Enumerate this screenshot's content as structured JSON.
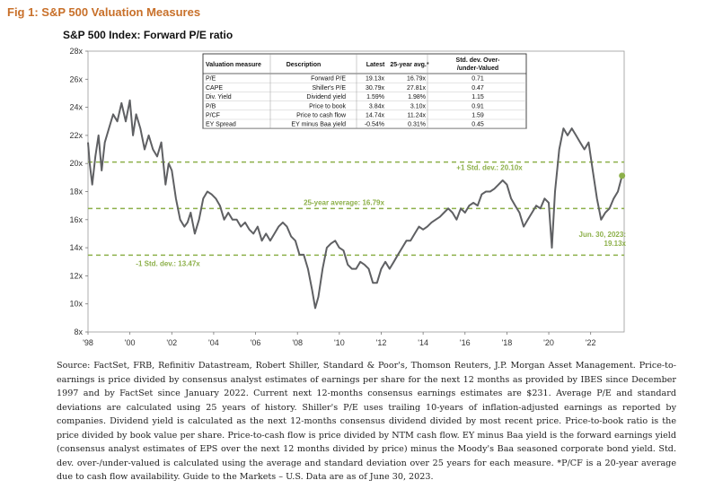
{
  "figure_title": "Fig 1: S&P 500 Valuation Measures",
  "colors": {
    "accent": "#c8702a",
    "line": "#5f6063",
    "band": "#8db04a",
    "endpoint": "#8db04a"
  },
  "source_text": "Source: FactSet, FRB, Refinitiv Datastream, Robert Shiller, Standard & Poor's, Thomson Reuters, J.P. Morgan Asset Management. Price-to-earnings is price divided by consensus analyst estimates of earnings per share for the next 12 months as provided by IBES since December 1997 and by FactSet since January 2022. Current next 12-months consensus earnings estimates are $231. Average P/E and standard deviations are calculated using 25 years of history. Shiller's P/E uses trailing 10-years of inflation-adjusted earnings as reported by companies. Dividend yield is calculated as the next 12-months consensus dividend divided by most recent price. Price-to-book ratio is the price divided by book value per share. Price-to-cash flow is price divided by NTM cash flow. EY minus Baa yield is the forward earnings yield (consensus analyst estimates of EPS over the next 12 months divided by price) minus the Moody's Baa seasoned corporate bond yield. Std. dev. over-/under-valued is calculated using the average and standard deviation over 25 years for each measure. *P/CF is a 20-year average due to cash flow availability. Guide to the Markets – U.S. Data are as of June 30, 2023.",
  "chart_data": {
    "type": "line",
    "title": "S&P 500 Index: Forward P/E ratio",
    "ylim": [
      8,
      28
    ],
    "y_ticks": [
      "8x",
      "10x",
      "12x",
      "14x",
      "16x",
      "18x",
      "20x",
      "22x",
      "24x",
      "26x",
      "28x"
    ],
    "x_ticks": [
      "'98",
      "'00",
      "'02",
      "'04",
      "'06",
      "'08",
      "'10",
      "'12",
      "'14",
      "'16",
      "'18",
      "'20",
      "'22"
    ],
    "reference_lines": [
      {
        "label": "+1 Std. dev.: 20.10x",
        "value": 20.1
      },
      {
        "label": "25-year average: 16.79x",
        "value": 16.79
      },
      {
        "label": "-1 Std. dev.: 13.47x",
        "value": 13.47
      }
    ],
    "endpoint_label": [
      "Jun. 30, 2023:",
      "19.13x"
    ],
    "series": [
      {
        "x": [
          1998.0,
          1998.08,
          1998.2,
          1998.35,
          1998.5,
          1998.65,
          1998.8,
          1999.0,
          1999.2,
          1999.4,
          1999.6,
          1999.8,
          2000.0,
          2000.15,
          2000.3,
          2000.5,
          2000.7,
          2000.9,
          2001.1,
          2001.3,
          2001.5,
          2001.7,
          2001.85,
          2002.0,
          2002.2,
          2002.4,
          2002.6,
          2002.75,
          2002.9,
          2003.1,
          2003.3,
          2003.5,
          2003.7,
          2003.9,
          2004.1,
          2004.3,
          2004.5,
          2004.7,
          2004.9,
          2005.1,
          2005.3,
          2005.5,
          2005.7,
          2005.9,
          2006.1,
          2006.3,
          2006.5,
          2006.7,
          2006.9,
          2007.1,
          2007.3,
          2007.5,
          2007.7,
          2007.9,
          2008.1,
          2008.3,
          2008.5,
          2008.7,
          2008.85,
          2009.0,
          2009.2,
          2009.4,
          2009.6,
          2009.8,
          2010.0,
          2010.2,
          2010.4,
          2010.6,
          2010.8,
          2011.0,
          2011.2,
          2011.4,
          2011.6,
          2011.8,
          2012.0,
          2012.2,
          2012.4,
          2012.6,
          2012.8,
          2013.0,
          2013.2,
          2013.4,
          2013.6,
          2013.8,
          2014.0,
          2014.2,
          2014.4,
          2014.6,
          2014.8,
          2015.0,
          2015.2,
          2015.4,
          2015.6,
          2015.8,
          2016.0,
          2016.2,
          2016.4,
          2016.6,
          2016.8,
          2017.0,
          2017.2,
          2017.4,
          2017.6,
          2017.8,
          2018.0,
          2018.2,
          2018.4,
          2018.6,
          2018.8,
          2019.0,
          2019.2,
          2019.4,
          2019.6,
          2019.8,
          2020.0,
          2020.15,
          2020.3,
          2020.5,
          2020.7,
          2020.9,
          2021.1,
          2021.3,
          2021.5,
          2021.7,
          2021.9,
          2022.1,
          2022.3,
          2022.5,
          2022.7,
          2022.9,
          2023.1,
          2023.3,
          2023.5
        ],
        "values": [
          21.5,
          20.0,
          18.5,
          20.5,
          22.0,
          19.5,
          21.5,
          22.5,
          23.5,
          23.0,
          24.3,
          23.0,
          24.5,
          22.0,
          23.5,
          22.5,
          21.0,
          22.0,
          21.0,
          20.5,
          21.5,
          18.5,
          20.0,
          19.5,
          17.5,
          16.0,
          15.5,
          15.8,
          16.5,
          15.0,
          16.0,
          17.5,
          18.0,
          17.8,
          17.5,
          17.0,
          16.0,
          16.5,
          16.0,
          16.0,
          15.5,
          15.8,
          15.3,
          15.0,
          15.5,
          14.5,
          15.0,
          14.5,
          15.0,
          15.5,
          15.8,
          15.5,
          14.8,
          14.5,
          13.5,
          13.5,
          12.5,
          11.0,
          9.7,
          10.5,
          12.5,
          14.0,
          14.3,
          14.5,
          14.0,
          13.8,
          12.8,
          12.5,
          12.5,
          13.0,
          12.8,
          12.5,
          11.5,
          11.5,
          12.5,
          13.0,
          12.5,
          13.0,
          13.5,
          14.0,
          14.5,
          14.5,
          15.0,
          15.5,
          15.3,
          15.5,
          15.8,
          16.0,
          16.2,
          16.5,
          16.8,
          16.5,
          16.0,
          16.8,
          16.5,
          17.0,
          17.2,
          17.0,
          17.8,
          18.0,
          18.0,
          18.2,
          18.5,
          18.8,
          18.5,
          17.5,
          17.0,
          16.5,
          15.5,
          16.0,
          16.5,
          17.0,
          16.8,
          17.5,
          17.2,
          14.0,
          18.0,
          21.0,
          22.5,
          22.0,
          22.5,
          22.0,
          21.5,
          21.0,
          21.5,
          19.5,
          17.5,
          16.0,
          16.5,
          16.8,
          17.5,
          18.0,
          19.13
        ]
      }
    ]
  },
  "valuation_table": {
    "headers": [
      "Valuation measure",
      "Description",
      "Latest",
      "25-year avg.*",
      "Std. dev. Over-/under-Valued"
    ],
    "rows": [
      [
        "P/E",
        "Forward P/E",
        "19.13x",
        "16.79x",
        "0.71"
      ],
      [
        "CAPE",
        "Shiller's P/E",
        "30.79x",
        "27.81x",
        "0.47"
      ],
      [
        "Div. Yield",
        "Dividend yield",
        "1.59%",
        "1.98%",
        "1.15"
      ],
      [
        "P/B",
        "Price to book",
        "3.84x",
        "3.10x",
        "0.91"
      ],
      [
        "P/CF",
        "Price to cash flow",
        "14.74x",
        "11.24x",
        "1.59"
      ],
      [
        "EY Spread",
        "EY minus Baa yield",
        "-0.54%",
        "0.31%",
        "0.45"
      ]
    ]
  }
}
